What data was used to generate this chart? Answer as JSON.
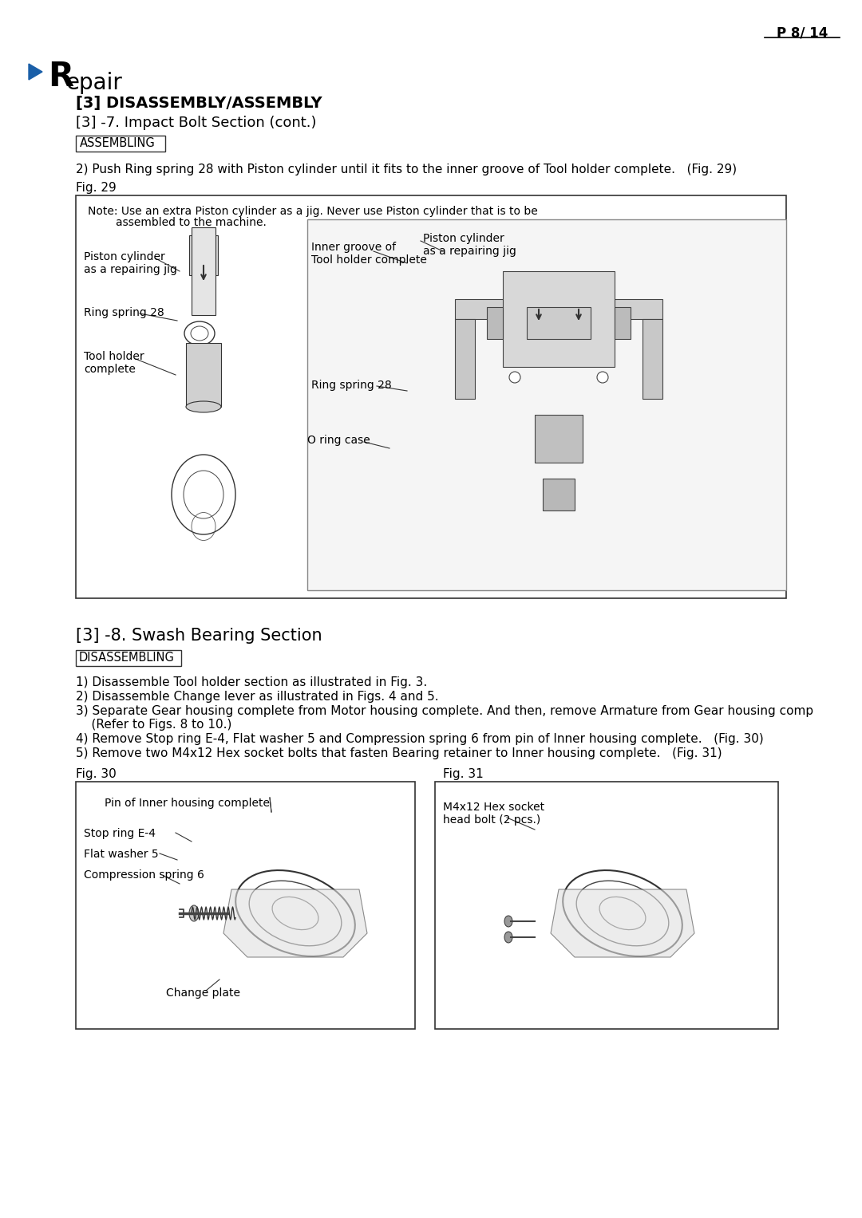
{
  "page_number": "P 8/ 14",
  "section_R": "R",
  "section_rest": "epair",
  "subsection1": "[3] DISASSEMBLY/ASSEMBLY",
  "subsection2": "[3] -7. Impact Bolt Section (cont.)",
  "label_assembling": "ASSEMBLING",
  "step2_text": "2) Push Ring spring 28 with Piston cylinder until it fits to the inner groove of Tool holder complete.   (Fig. 29)",
  "fig29_label": "Fig. 29",
  "fig29_note1": "Note: Use an extra Piston cylinder as a jig. Never use Piston cylinder that is to be",
  "fig29_note2": "        assembled to the machine.",
  "fig29_label_pc_left": "Piston cylinder\nas a repairing jig",
  "fig29_label_ring_left": "Ring spring 28",
  "fig29_label_tool": "Tool holder\ncomplete",
  "fig29_label_inner": "Inner groove of\nTool holder complete",
  "fig29_label_pc_right": "Piston cylinder\nas a repairing jig",
  "fig29_label_ring_right": "Ring spring 28",
  "fig29_label_oring": "O ring case",
  "section2_title": "[3] -8. Swash Bearing Section",
  "label_disassembling": "DISASSEMBLING",
  "step1": "1) Disassemble Tool holder section as illustrated in Fig. 3.",
  "step2": "2) Disassemble Change lever as illustrated in Figs. 4 and 5.",
  "step3a": "3) Separate Gear housing complete from Motor housing complete. And then, remove Armature from Gear housing comp",
  "step3b": "    (Refer to Figs. 8 to 10.)",
  "step4": "4) Remove Stop ring E-4, Flat washer 5 and Compression spring 6 from pin of Inner housing complete.   (Fig. 30)",
  "step5": "5) Remove two M4x12 Hex socket bolts that fasten Bearing retainer to Inner housing complete.   (Fig. 31)",
  "fig30_label": "Fig. 30",
  "fig31_label": "Fig. 31",
  "fig30_pin": "Pin of Inner housing complete",
  "fig30_stop": "Stop ring E-4",
  "fig30_washer": "Flat washer 5",
  "fig30_spring": "Compression spring 6",
  "fig30_plate": "Change plate",
  "fig31_bolt": "M4x12 Hex socket\nhead bolt (2 pcs.)",
  "bg_color": "#ffffff",
  "text_color": "#000000",
  "blue_color": "#1a5fa8",
  "border_color": "#333333",
  "light_gray": "#e8e8e8",
  "mid_gray": "#aaaaaa",
  "dark_gray": "#555555"
}
